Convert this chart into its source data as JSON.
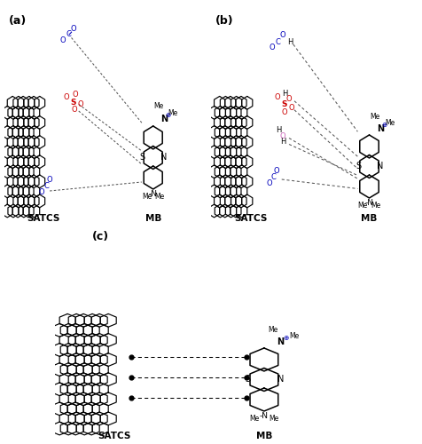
{
  "bg_color": "#ffffff",
  "black": "#000000",
  "blue": "#0000bb",
  "red": "#cc0000",
  "pink": "#cc66bb",
  "gray_dot": "#888888",
  "panel_a_label": "(a)",
  "panel_b_label": "(b)",
  "panel_c_label": "(c)",
  "satcs_label": "SATCS",
  "mb_label": "MB"
}
